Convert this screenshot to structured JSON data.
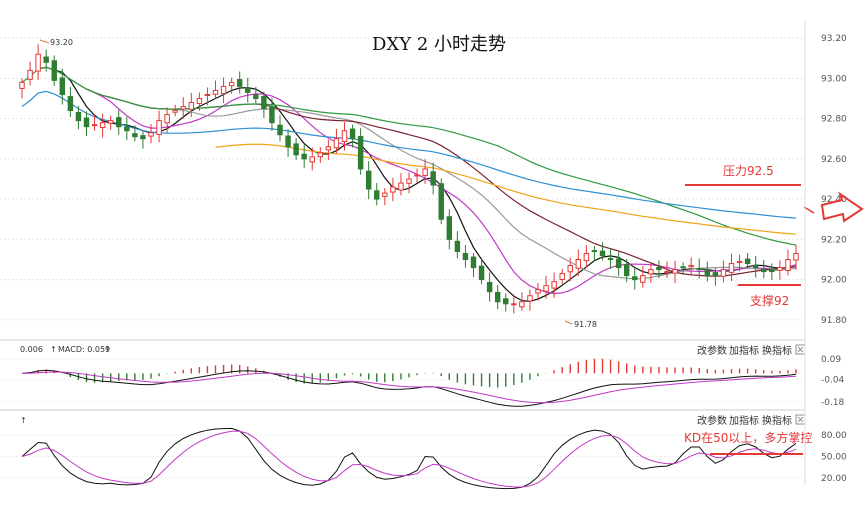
{
  "chart_data": [
    {
      "type": "candlestick",
      "title": "DXY 2 小时走势",
      "ylim": [
        91.72,
        93.28
      ],
      "yticks": [
        "93.20",
        "93.00",
        "92.80",
        "92.60",
        "92.40",
        "92.20",
        "92.00",
        "91.80"
      ],
      "high_label": "93.20",
      "low_label": "91.78",
      "annotations": {
        "resistance": {
          "label": "压力92.5",
          "value": 92.5
        },
        "support": {
          "label": "支撑92",
          "value": 92.0
        }
      },
      "close": [
        92.98,
        93.04,
        93.12,
        93.08,
        92.99,
        92.92,
        92.84,
        92.79,
        92.76,
        92.77,
        92.78,
        92.79,
        92.76,
        92.74,
        92.71,
        92.7,
        92.73,
        92.79,
        92.82,
        92.84,
        92.86,
        92.88,
        92.9,
        92.92,
        92.94,
        92.96,
        92.98,
        92.96,
        92.93,
        92.9,
        92.85,
        92.78,
        92.72,
        92.66,
        92.62,
        92.6,
        92.61,
        92.63,
        92.66,
        92.7,
        92.74,
        92.7,
        92.55,
        92.45,
        92.4,
        92.43,
        92.46,
        92.48,
        92.5,
        92.52,
        92.55,
        92.47,
        92.3,
        92.2,
        92.14,
        92.1,
        92.06,
        92.0,
        91.94,
        91.89,
        91.88,
        91.88,
        91.89,
        91.92,
        91.95,
        91.97,
        91.99,
        92.03,
        92.07,
        92.1,
        92.13,
        92.14,
        92.12,
        92.1,
        92.06,
        92.02,
        92.0,
        92.02,
        92.05,
        92.05,
        92.04,
        92.05,
        92.06,
        92.07,
        92.05,
        92.02,
        92.02,
        92.05,
        92.08,
        92.09,
        92.08,
        92.06,
        92.04,
        92.04,
        92.06,
        92.1,
        92.13
      ],
      "macd": {
        "label": "MACD: 0.059",
        "value_label": "0.006",
        "yticks": [
          "0.09",
          "-0.04",
          "-0.18"
        ]
      },
      "kd": {
        "yticks": [
          "80.00",
          "50.00",
          "20.00"
        ],
        "annotation": "KD在50以上，多方掌控"
      },
      "controls": [
        "改参数",
        "加指标",
        "换指标"
      ]
    }
  ],
  "colors": {
    "up": "#e53935",
    "down": "#2e7d32",
    "ma_short": "#111111",
    "ma_mid": "#c238c7",
    "ma_a": "#7a2130",
    "ma_b": "#2e9b3e",
    "ma_c": "#2d8fd5",
    "ma_d": "#f0a21a",
    "annotation": "#e53935"
  }
}
